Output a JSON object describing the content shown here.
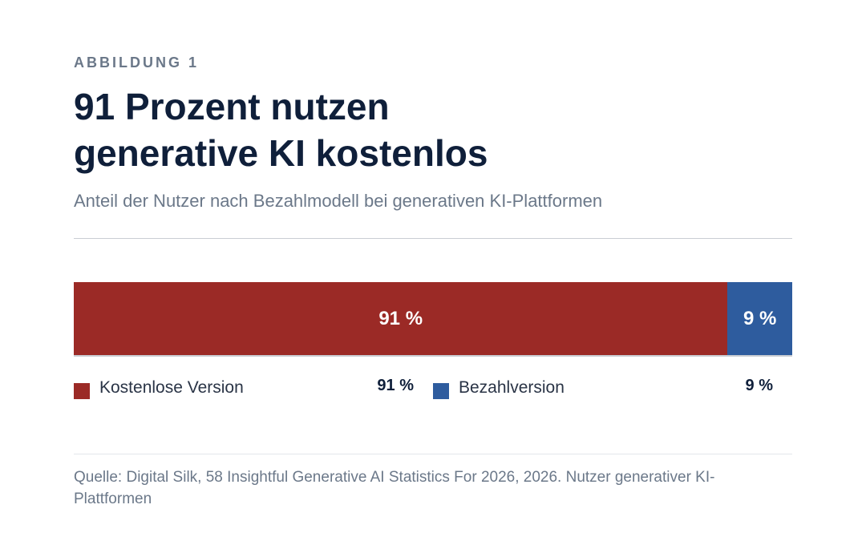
{
  "figure": {
    "eyebrow": "ABBILDUNG 1",
    "title_line1": "91 Prozent nutzen",
    "title_line2": "generative KI kostenlos",
    "subtitle": "Anteil der Nutzer nach Bezahlmodell bei generativen KI-Plattformen",
    "source": "Quelle: Digital Silk, 58 Insightful Generative AI Statistics For 2026, 2026. Nutzer generativer KI-Plattformen"
  },
  "chart_data": {
    "type": "bar",
    "orientation": "horizontal-stacked-100",
    "categories": [
      "Kostenlose Version",
      "Bezahlversion"
    ],
    "values": [
      91,
      9
    ],
    "value_labels": [
      "91 %",
      "9 %"
    ],
    "colors": [
      "#9b2a26",
      "#2e5c9e"
    ],
    "title": "91 Prozent nutzen generative KI kostenlos",
    "subtitle": "Anteil der Nutzer nach Bezahlmodell bei generativen KI-Plattformen",
    "legend_position": "bottom",
    "grid": false
  }
}
